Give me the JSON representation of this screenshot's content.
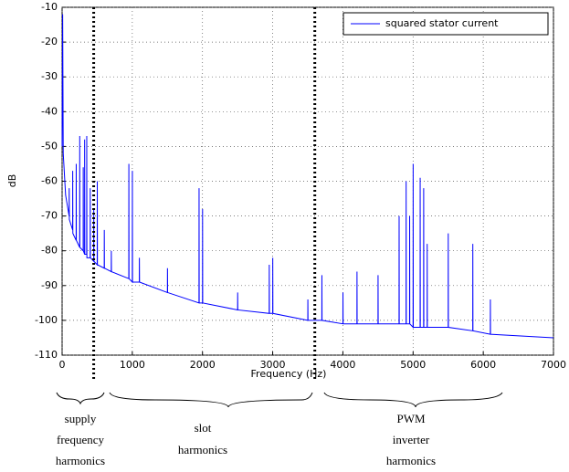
{
  "chart_data": {
    "type": "line",
    "xlabel": "Frequency (Hz)",
    "ylabel": "dB",
    "xlim": [
      0,
      7000
    ],
    "ylim": [
      -110,
      -10
    ],
    "xticks": [
      0,
      1000,
      2000,
      3000,
      4000,
      5000,
      6000,
      7000
    ],
    "yticks": [
      -110,
      -100,
      -90,
      -80,
      -70,
      -60,
      -50,
      -40,
      -30,
      -20,
      -10
    ],
    "grid": true,
    "legend": "upper right",
    "separators": [
      450,
      3600
    ],
    "annotations": [
      [
        "supply",
        "frequency",
        "harmonics"
      ],
      [
        "slot",
        "harmonics"
      ],
      [
        "PWM",
        "inverter",
        "harmonics"
      ]
    ],
    "series": [
      {
        "name": "squared stator current",
        "color": "#0000ff",
        "x": [
          0,
          8,
          16,
          50,
          100,
          101,
          103,
          150,
          151,
          153,
          200,
          201,
          203,
          250,
          251,
          253,
          300,
          301,
          303,
          320,
          321,
          323,
          350,
          351,
          353,
          400,
          401,
          403,
          450,
          451,
          453,
          500,
          501,
          503,
          600,
          601,
          603,
          700,
          701,
          703,
          950,
          951,
          953,
          1000,
          1001,
          1003,
          1100,
          1101,
          1103,
          1500,
          1501,
          1503,
          1950,
          1951,
          1953,
          2000,
          2001,
          2003,
          2500,
          2501,
          2503,
          2950,
          2951,
          2953,
          3000,
          3001,
          3003,
          3500,
          3501,
          3503,
          3700,
          3701,
          3703,
          4000,
          4001,
          4003,
          4200,
          4201,
          4203,
          4500,
          4501,
          4503,
          4800,
          4801,
          4803,
          4900,
          4901,
          4903,
          4950,
          4951,
          4953,
          5000,
          5001,
          5003,
          5100,
          5101,
          5103,
          5150,
          5151,
          5153,
          5200,
          5201,
          5203,
          5500,
          5501,
          5503,
          5850,
          5851,
          5853,
          6100,
          6101,
          6103,
          7000
        ],
        "values": [
          -50,
          -12,
          -52,
          -64,
          -70,
          -62,
          -71,
          -74,
          -57,
          -75,
          -77,
          -55,
          -77,
          -79,
          -47,
          -79,
          -80,
          -56,
          -80,
          -81,
          -48,
          -81,
          -81,
          -47,
          -82,
          -82,
          -62,
          -82,
          -83,
          -68,
          -83,
          -84,
          -60,
          -84,
          -85,
          -74,
          -85,
          -86,
          -80,
          -86,
          -88,
          -55,
          -88,
          -89,
          -57,
          -89,
          -89,
          -82,
          -89,
          -92,
          -85,
          -92,
          -95,
          -62,
          -95,
          -95,
          -68,
          -95,
          -97,
          -92,
          -97,
          -98,
          -84,
          -98,
          -98,
          -82,
          -98,
          -100,
          -94,
          -100,
          -100,
          -87,
          -100,
          -101,
          -92,
          -101,
          -101,
          -86,
          -101,
          -101,
          -87,
          -101,
          -101,
          -70,
          -101,
          -101,
          -60,
          -101,
          -101,
          -70,
          -101,
          -102,
          -55,
          -102,
          -102,
          -59,
          -102,
          -102,
          -62,
          -102,
          -102,
          -78,
          -102,
          -102,
          -75,
          -102,
          -103,
          -78,
          -103,
          -104,
          -94,
          -104,
          -105
        ]
      }
    ]
  }
}
